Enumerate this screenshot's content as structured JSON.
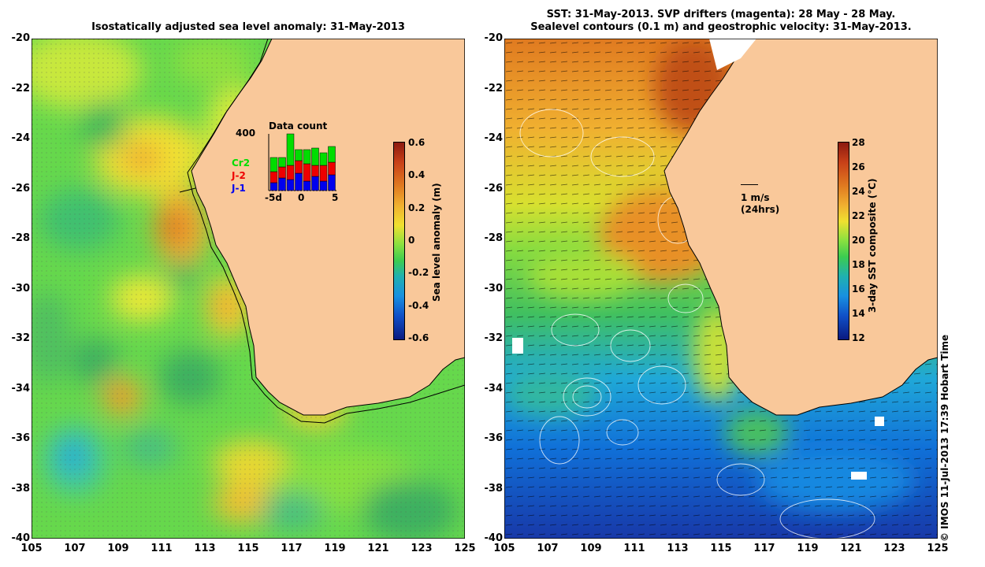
{
  "left_title": "Isostatically adjusted sea level anomaly: 31-May-2013",
  "right_title_line1": "SST: 31-May-2013. SVP drifters (magenta): 28 May - 28 May.",
  "right_title_line2": "Sealevel contours (0.1 m) and geostrophic velocity: 31-May-2013.",
  "lat_ticks": [
    "-20",
    "-22",
    "-24",
    "-26",
    "-28",
    "-30",
    "-32",
    "-34",
    "-36",
    "-38",
    "-40"
  ],
  "lon_ticks": [
    "105",
    "107",
    "109",
    "111",
    "113",
    "115",
    "117",
    "119",
    "121",
    "123",
    "125"
  ],
  "left_colorbar": {
    "title": "Sea level anomaly (m)",
    "ticks": [
      "0.6",
      "0.4",
      "0.2",
      "0",
      "-0.2",
      "-0.4",
      "-0.6"
    ]
  },
  "right_colorbar": {
    "title": "3-day SST composite (°C)",
    "ticks": [
      "28",
      "26",
      "24",
      "22",
      "20",
      "18",
      "16",
      "14",
      "12"
    ]
  },
  "inset": {
    "title": "Data count",
    "ymax": "400",
    "xticks": [
      "-5d",
      "0",
      "5"
    ],
    "series": [
      "Cr2",
      "J-2",
      "J-1"
    ],
    "colors": {
      "Cr2": "#00dd00",
      "J-2": "#ee0000",
      "J-1": "#0000ee"
    }
  },
  "velocity_scale": {
    "label1": "1 m/s",
    "label2": "(24hrs)"
  },
  "credit": "© IMOS 11-Jul-2013 17:39 Hobart Time"
}
